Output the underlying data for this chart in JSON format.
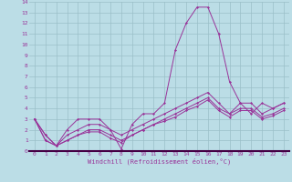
{
  "x": [
    0,
    1,
    2,
    3,
    4,
    5,
    6,
    7,
    8,
    9,
    10,
    11,
    12,
    13,
    14,
    15,
    16,
    17,
    18,
    19,
    20,
    21,
    22,
    23
  ],
  "line1": [
    3.0,
    1.5,
    0.5,
    2.0,
    3.0,
    3.0,
    3.0,
    2.0,
    0.2,
    2.5,
    3.5,
    3.5,
    4.5,
    9.5,
    12.0,
    13.5,
    13.5,
    11.0,
    6.5,
    4.5,
    3.5,
    4.5,
    4.0,
    4.5
  ],
  "line2": [
    3.0,
    1.5,
    0.5,
    1.5,
    2.0,
    2.5,
    2.5,
    2.0,
    1.5,
    2.0,
    2.5,
    3.0,
    3.5,
    4.0,
    4.5,
    5.0,
    5.5,
    4.5,
    3.5,
    4.5,
    4.5,
    3.5,
    4.0,
    4.5
  ],
  "line3": [
    3.0,
    1.0,
    0.5,
    1.0,
    1.5,
    2.0,
    2.0,
    1.5,
    1.0,
    1.5,
    2.0,
    2.5,
    3.0,
    3.5,
    4.0,
    4.5,
    5.0,
    4.0,
    3.5,
    4.0,
    4.0,
    3.2,
    3.5,
    4.0
  ],
  "line4": [
    3.0,
    1.0,
    0.5,
    1.0,
    1.5,
    1.8,
    1.8,
    1.2,
    0.8,
    1.5,
    2.0,
    2.5,
    2.8,
    3.2,
    3.8,
    4.2,
    4.8,
    3.8,
    3.2,
    3.8,
    3.8,
    3.0,
    3.3,
    3.8
  ],
  "line_color": "#993399",
  "bg_color": "#bbdde6",
  "grid_color": "#9bbfc8",
  "xlabel": "Windchill (Refroidissement éolien,°C)",
  "ylim": [
    0,
    14
  ],
  "xlim": [
    -0.5,
    23.5
  ],
  "yticks": [
    0,
    1,
    2,
    3,
    4,
    5,
    6,
    7,
    8,
    9,
    10,
    11,
    12,
    13,
    14
  ],
  "xticks": [
    0,
    1,
    2,
    3,
    4,
    5,
    6,
    7,
    8,
    9,
    10,
    11,
    12,
    13,
    14,
    15,
    16,
    17,
    18,
    19,
    20,
    21,
    22,
    23
  ]
}
